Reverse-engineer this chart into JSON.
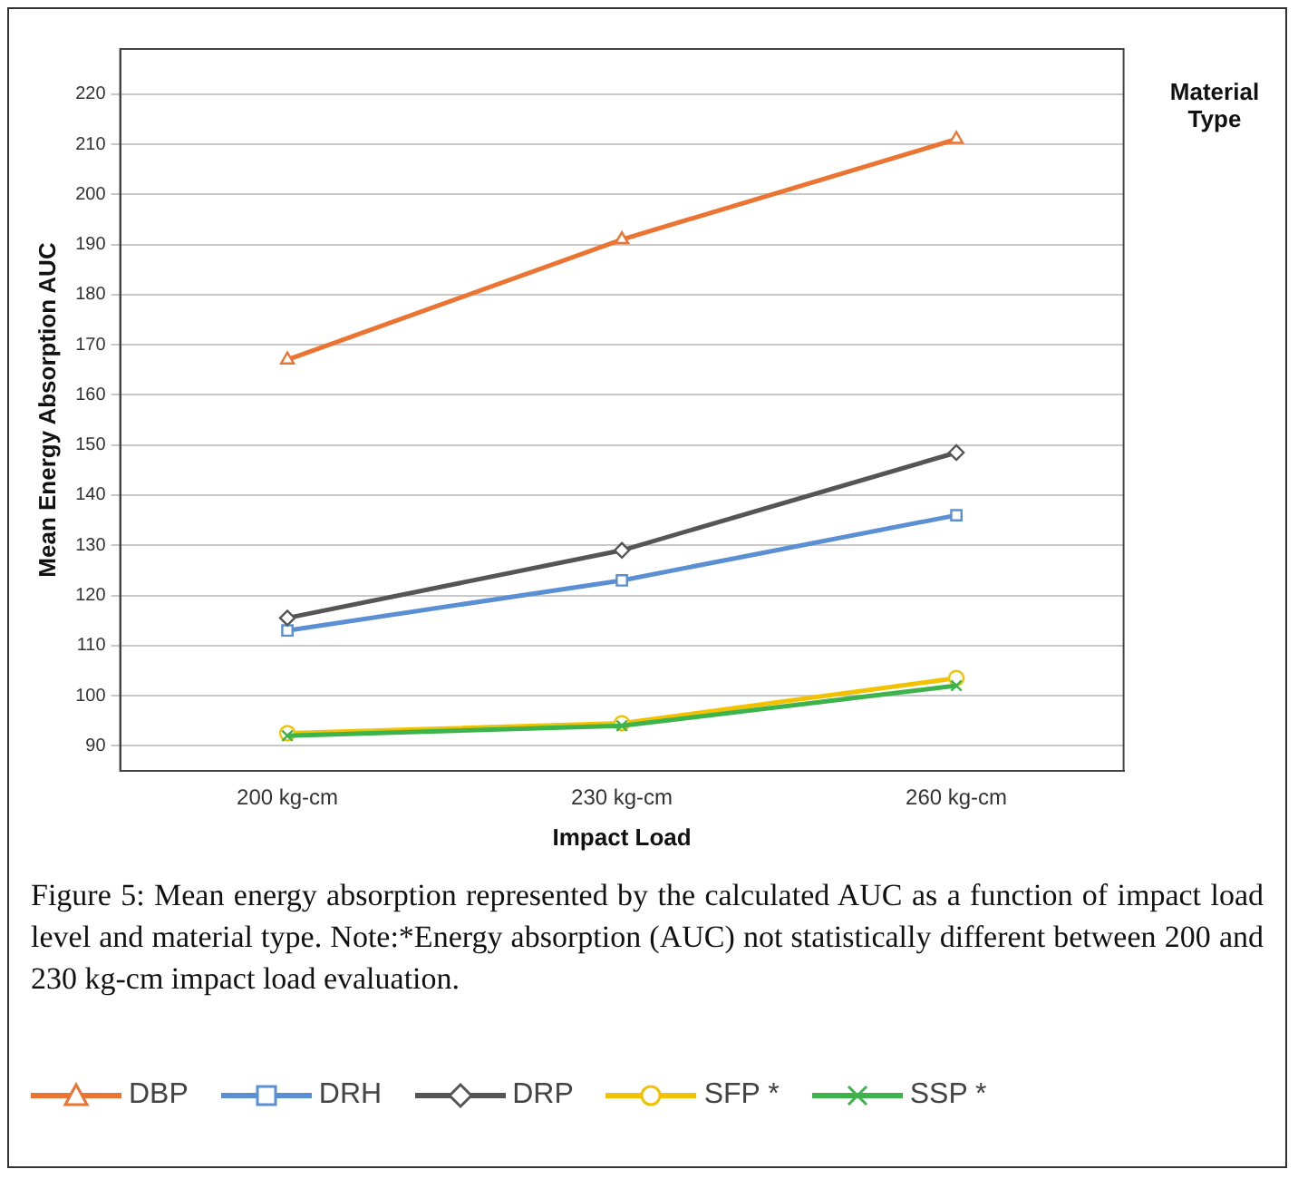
{
  "chart_data": {
    "type": "line",
    "xlabel": "Impact Load",
    "ylabel": "Mean Energy Absorption AUC",
    "legend_title": "Material Type",
    "categories": [
      "200 kg-cm",
      "230 kg-cm",
      "260 kg-cm"
    ],
    "series": [
      {
        "name": "DBP",
        "color": "#ec7433",
        "marker": "triangle",
        "values": [
          167,
          191,
          211
        ]
      },
      {
        "name": "DRH",
        "color": "#5b8fd4",
        "marker": "square",
        "values": [
          113,
          123,
          136
        ]
      },
      {
        "name": "DRP",
        "color": "#555555",
        "marker": "diamond",
        "values": [
          115.5,
          129,
          148.5
        ]
      },
      {
        "name": "SFP *",
        "color": "#f2c200",
        "marker": "circle",
        "values": [
          92.5,
          94.5,
          103.5
        ]
      },
      {
        "name": "SSP *",
        "color": "#3cb44b",
        "marker": "cross",
        "values": [
          92,
          94,
          102
        ]
      }
    ],
    "ylim": [
      85,
      229
    ],
    "yticks": [
      90,
      100,
      110,
      120,
      130,
      140,
      150,
      160,
      170,
      180,
      190,
      200,
      210,
      220
    ],
    "grid": "y",
    "legend": "bottom",
    "line_style": "solid",
    "annotations": [
      "Figure 5: Mean energy absorption represented by the calculated AUC as a function of impact load level and material type. Note:*Energy absorption (AUC) not statistically different between 200 and 230 kg-cm impact load evaluation."
    ]
  }
}
